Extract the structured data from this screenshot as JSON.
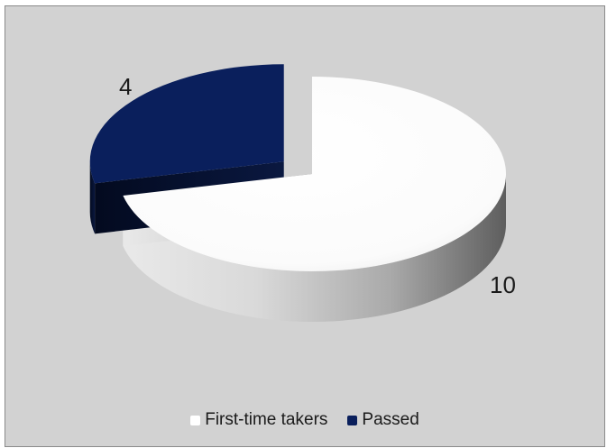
{
  "chart_data": {
    "type": "pie",
    "style": "3d",
    "slices": [
      {
        "label": "First-time takers",
        "value": 10,
        "color": "#ffffff"
      },
      {
        "label": "Passed",
        "value": 4,
        "color": "#0a1f5c"
      }
    ],
    "data_labels": [
      "10",
      "4"
    ],
    "exploded_slice": "Passed",
    "legend": {
      "placement": "bottom",
      "entries": [
        "First-time takers",
        "Passed"
      ]
    },
    "background_color": "#d2d2d2"
  }
}
